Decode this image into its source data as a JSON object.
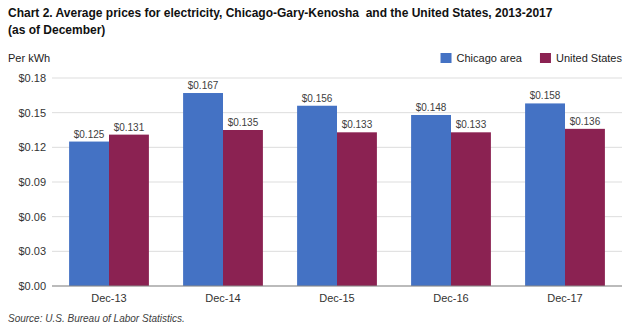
{
  "chart_data": {
    "type": "bar",
    "title": "Chart 2. Average prices for electricity, Chicago-Gary-Kenosha  and the United States, 2013-2017",
    "subtitle": "(as of December)",
    "y_label": "Per kWh",
    "source": "Source: U.S. Bureau of Labor Statistics.",
    "categories": [
      "Dec-13",
      "Dec-14",
      "Dec-15",
      "Dec-16",
      "Dec-17"
    ],
    "series": [
      {
        "name": "Chicago area",
        "color": "#4472C4",
        "values": [
          0.125,
          0.167,
          0.156,
          0.148,
          0.158
        ],
        "value_labels": [
          "$0.125",
          "$0.167",
          "$0.156",
          "$0.148",
          "$0.158"
        ]
      },
      {
        "name": "United States",
        "color": "#8B2252",
        "values": [
          0.131,
          0.135,
          0.133,
          0.133,
          0.136
        ],
        "value_labels": [
          "$0.131",
          "$0.135",
          "$0.133",
          "$0.133",
          "$0.136"
        ]
      }
    ],
    "ylim": [
      0,
      0.18
    ],
    "yticks": [
      {
        "value": 0.0,
        "label": "$0.00"
      },
      {
        "value": 0.03,
        "label": "$0.03"
      },
      {
        "value": 0.06,
        "label": "$0.06"
      },
      {
        "value": 0.09,
        "label": "$0.09"
      },
      {
        "value": 0.12,
        "label": "$0.12"
      },
      {
        "value": 0.15,
        "label": "$0.15"
      },
      {
        "value": 0.18,
        "label": "$0.18"
      }
    ],
    "grid": true,
    "legend": "top-right",
    "data_labels": true
  }
}
